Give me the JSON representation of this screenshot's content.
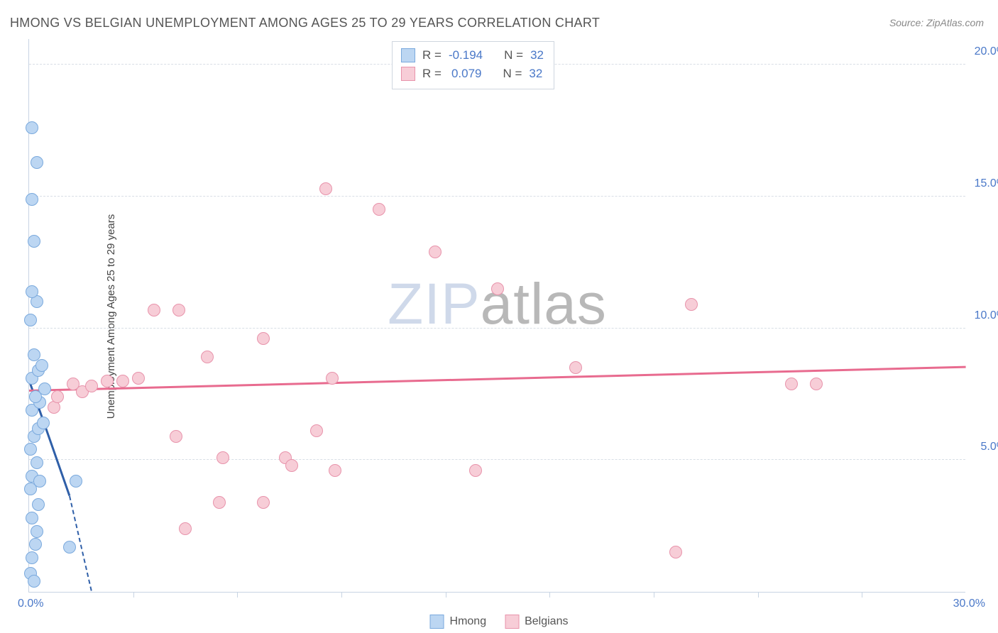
{
  "title": "HMONG VS BELGIAN UNEMPLOYMENT AMONG AGES 25 TO 29 YEARS CORRELATION CHART",
  "source": "Source: ZipAtlas.com",
  "y_axis_label": "Unemployment Among Ages 25 to 29 years",
  "watermark_left": "ZIP",
  "watermark_right": "atlas",
  "chart": {
    "type": "scatter",
    "xlim": [
      0,
      30
    ],
    "ylim": [
      0,
      21
    ],
    "x_zero_label": "0.0%",
    "x_max_label": "30.0%",
    "x_tick_positions": [
      3.33,
      6.67,
      10.0,
      13.33,
      16.67,
      20.0,
      23.33,
      26.67
    ],
    "y_ticks": [
      {
        "v": 5,
        "label": "5.0%"
      },
      {
        "v": 10,
        "label": "10.0%"
      },
      {
        "v": 15,
        "label": "15.0%"
      },
      {
        "v": 20,
        "label": "20.0%"
      }
    ],
    "background_color": "#ffffff",
    "grid_color": "#d8dee6",
    "marker_radius": 9,
    "series": [
      {
        "name": "Hmong",
        "fill": "#bcd6f2",
        "stroke": "#7aa9dd",
        "trend_color": "#2f5fa8",
        "trend": {
          "x1": 0,
          "y1": 8.0,
          "x2": 1.3,
          "y2": 3.6,
          "dash_to_x": 2.0,
          "dash_to_y": 0
        },
        "R": "-0.194",
        "N": "32",
        "points": [
          [
            0.05,
            0.7
          ],
          [
            0.15,
            0.4
          ],
          [
            0.1,
            1.3
          ],
          [
            0.2,
            1.8
          ],
          [
            0.25,
            2.3
          ],
          [
            0.1,
            2.8
          ],
          [
            0.3,
            3.3
          ],
          [
            0.05,
            3.9
          ],
          [
            0.1,
            4.4
          ],
          [
            0.35,
            4.2
          ],
          [
            0.25,
            4.9
          ],
          [
            0.05,
            5.4
          ],
          [
            0.15,
            5.9
          ],
          [
            0.3,
            6.2
          ],
          [
            0.45,
            6.4
          ],
          [
            0.1,
            6.9
          ],
          [
            0.35,
            7.2
          ],
          [
            0.2,
            7.4
          ],
          [
            0.5,
            7.7
          ],
          [
            0.1,
            8.1
          ],
          [
            0.3,
            8.4
          ],
          [
            0.4,
            8.6
          ],
          [
            0.15,
            9.0
          ],
          [
            0.05,
            10.3
          ],
          [
            0.25,
            11.0
          ],
          [
            0.1,
            11.4
          ],
          [
            0.15,
            13.3
          ],
          [
            0.1,
            14.9
          ],
          [
            0.25,
            16.3
          ],
          [
            0.1,
            17.6
          ],
          [
            1.5,
            4.2
          ],
          [
            1.3,
            1.7
          ]
        ]
      },
      {
        "name": "Belgians",
        "fill": "#f7cdd7",
        "stroke": "#e893ab",
        "trend_color": "#e86b8f",
        "trend": {
          "x1": 0,
          "y1": 7.6,
          "x2": 30,
          "y2": 8.5
        },
        "R": "0.079",
        "N": "32",
        "points": [
          [
            0.8,
            7.0
          ],
          [
            1.4,
            7.9
          ],
          [
            1.7,
            7.6
          ],
          [
            2.5,
            8.0
          ],
          [
            3.5,
            8.1
          ],
          [
            4.0,
            10.7
          ],
          [
            4.7,
            5.9
          ],
          [
            4.8,
            10.7
          ],
          [
            5.0,
            2.4
          ],
          [
            5.7,
            8.9
          ],
          [
            6.1,
            3.4
          ],
          [
            6.2,
            5.1
          ],
          [
            7.5,
            9.6
          ],
          [
            7.5,
            3.4
          ],
          [
            8.2,
            5.1
          ],
          [
            8.4,
            4.8
          ],
          [
            9.2,
            6.1
          ],
          [
            9.5,
            15.3
          ],
          [
            9.7,
            8.1
          ],
          [
            9.8,
            4.6
          ],
          [
            11.2,
            14.5
          ],
          [
            13.0,
            12.9
          ],
          [
            14.3,
            4.6
          ],
          [
            15.0,
            11.5
          ],
          [
            17.5,
            8.5
          ],
          [
            20.7,
            1.5
          ],
          [
            21.2,
            10.9
          ],
          [
            24.4,
            7.9
          ],
          [
            25.2,
            7.9
          ],
          [
            0.9,
            7.4
          ],
          [
            2.0,
            7.8
          ],
          [
            3.0,
            8.0
          ]
        ]
      }
    ]
  },
  "legend": {
    "series1_label": "Hmong",
    "series2_label": "Belgians"
  },
  "corr_box": {
    "r_label": "R =",
    "n_label": "N ="
  }
}
